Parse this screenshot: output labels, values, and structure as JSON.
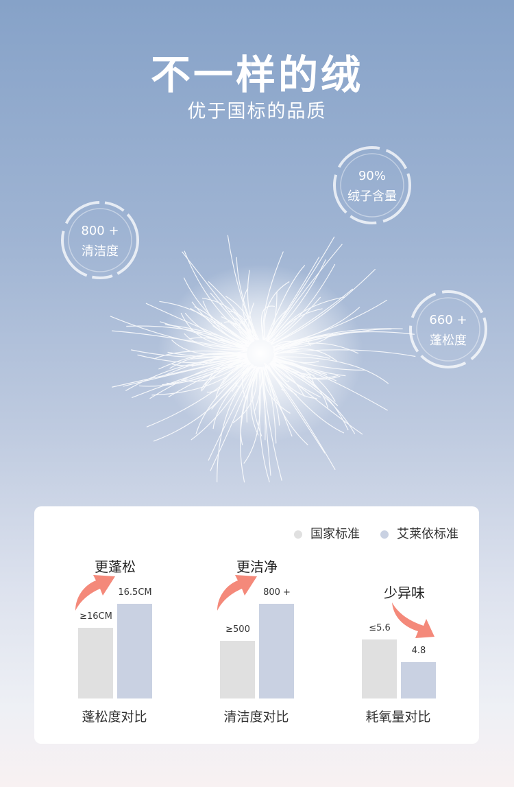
{
  "header": {
    "title": "不一样的绒",
    "subtitle": "优于国标的品质"
  },
  "badges": [
    {
      "value": "800 +",
      "label": "清洁度"
    },
    {
      "value": "90%",
      "label": "绒子含量"
    },
    {
      "value": "660 +",
      "label": "蓬松度"
    }
  ],
  "colors": {
    "national": "#e0e0e0",
    "brand": "#c9d1e2",
    "arrow": "#f4897a"
  },
  "chart_data": {
    "type": "bar",
    "legend": [
      "国家标准",
      "艾莱依标准"
    ],
    "legend_placement": "top-right",
    "groups": [
      {
        "caption": "蓬松度对比",
        "tag": "更蓬松",
        "direction": "up",
        "national": {
          "value": 16,
          "label": "≥16CM"
        },
        "brand": {
          "value": 16.5,
          "label": "16.5CM"
        }
      },
      {
        "caption": "清洁度对比",
        "tag": "更洁净",
        "direction": "up",
        "national": {
          "value": 500,
          "label": "≥500"
        },
        "brand": {
          "value": 800,
          "label": "800 +"
        }
      },
      {
        "caption": "耗氧量对比",
        "tag": "少异味",
        "direction": "down",
        "national": {
          "value": 5.6,
          "label": "≤5.6"
        },
        "brand": {
          "value": 4.8,
          "label": "4.8"
        }
      }
    ]
  }
}
